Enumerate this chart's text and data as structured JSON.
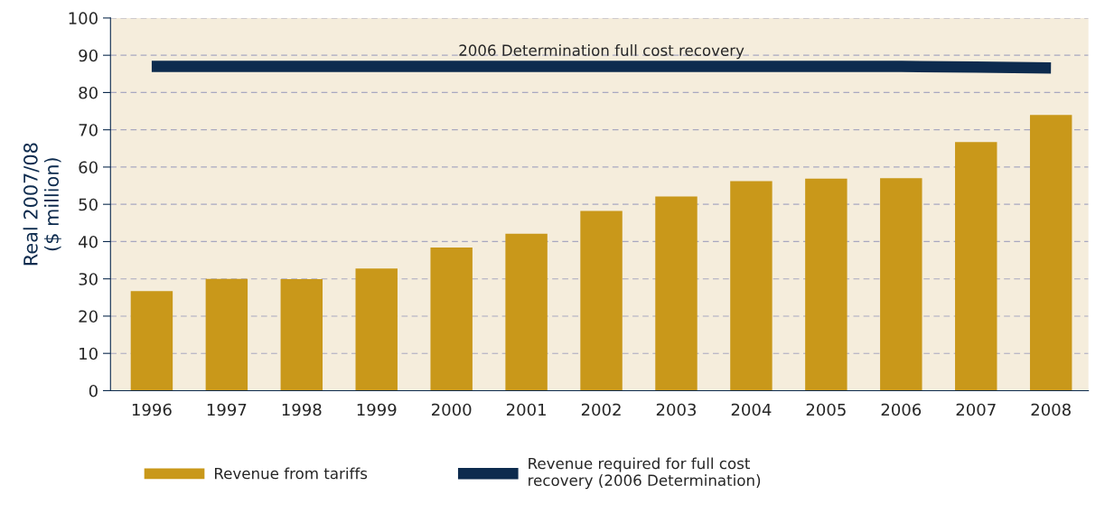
{
  "chart_data": {
    "type": "bar",
    "categories": [
      "1996",
      "1997",
      "1998",
      "1999",
      "2000",
      "2001",
      "2002",
      "2003",
      "2004",
      "2005",
      "2006",
      "2007",
      "2008"
    ],
    "ylabel": "Real 2007/08\n($ million)",
    "series": [
      {
        "name": "Revenue from tariffs",
        "color": "#c9981a",
        "values": [
          26.7,
          30,
          29.9,
          32.8,
          38.4,
          42.1,
          48.2,
          52.1,
          56.2,
          56.9,
          57,
          66.7,
          74
        ]
      },
      {
        "name": "Revenue required for full cost\nrecovery (2006 Determination)",
        "type": "line",
        "color": "#0d2b4e",
        "values": [
          87,
          87,
          87,
          87,
          87,
          87,
          87,
          87,
          87,
          87,
          87,
          86.8,
          86.6
        ]
      }
    ],
    "annotations": [
      {
        "text": "2006 Determination full cost recovery",
        "x": "2002",
        "y": 87
      }
    ],
    "ylim": [
      0,
      100
    ],
    "yticks": [
      0,
      10,
      20,
      30,
      40,
      50,
      60,
      70,
      80,
      90,
      100
    ],
    "grid": "y",
    "legend": "bottom"
  }
}
